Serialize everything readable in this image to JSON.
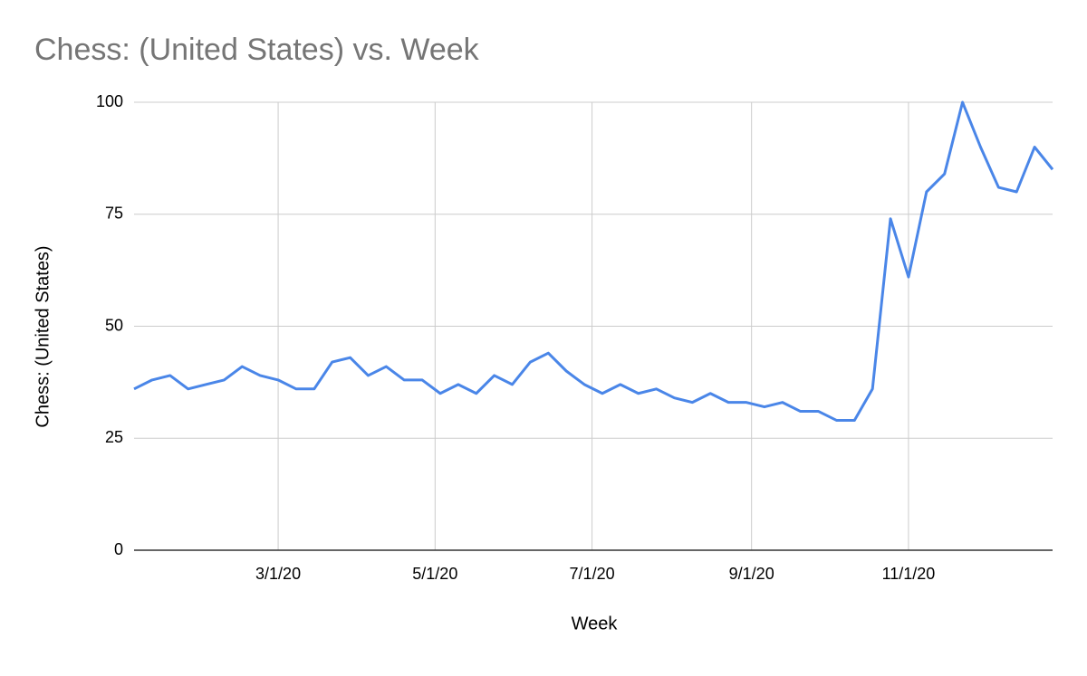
{
  "chart_data": {
    "type": "line",
    "title": "Chess: (United States) vs. Week",
    "x_label": "Week",
    "y_label": "Chess: (United States)",
    "x": [
      "1/5/20",
      "1/12/20",
      "1/19/20",
      "1/26/20",
      "2/2/20",
      "2/9/20",
      "2/16/20",
      "2/23/20",
      "3/1/20",
      "3/8/20",
      "3/15/20",
      "3/22/20",
      "3/29/20",
      "4/5/20",
      "4/12/20",
      "4/19/20",
      "4/26/20",
      "5/3/20",
      "5/10/20",
      "5/17/20",
      "5/24/20",
      "5/31/20",
      "6/7/20",
      "6/14/20",
      "6/21/20",
      "6/28/20",
      "7/5/20",
      "7/12/20",
      "7/19/20",
      "7/26/20",
      "8/2/20",
      "8/9/20",
      "8/16/20",
      "8/23/20",
      "8/30/20",
      "9/6/20",
      "9/13/20",
      "9/20/20",
      "9/27/20",
      "10/4/20",
      "10/11/20",
      "10/18/20",
      "10/25/20",
      "11/1/20",
      "11/8/20",
      "11/15/20",
      "11/22/20",
      "11/29/20",
      "12/6/20",
      "12/13/20",
      "12/20/20",
      "12/27/20"
    ],
    "series": [
      {
        "name": "Chess: (United States)",
        "color": "#4a86e8",
        "values": [
          36,
          38,
          39,
          36,
          37,
          38,
          41,
          39,
          38,
          36,
          36,
          42,
          43,
          39,
          41,
          38,
          38,
          35,
          37,
          35,
          39,
          37,
          42,
          44,
          40,
          37,
          35,
          37,
          35,
          36,
          34,
          33,
          35,
          33,
          33,
          32,
          33,
          31,
          31,
          29,
          29,
          36,
          74,
          61,
          80,
          84,
          100,
          90,
          81,
          80,
          90,
          85
        ]
      }
    ],
    "xlim": [
      "1/5/20",
      "12/27/20"
    ],
    "xticks": [
      "3/1/20",
      "5/1/20",
      "7/1/20",
      "9/1/20",
      "11/1/20"
    ],
    "ylim": [
      0,
      100
    ],
    "yticks": [
      0,
      25,
      50,
      75,
      100
    ],
    "grid": true
  }
}
